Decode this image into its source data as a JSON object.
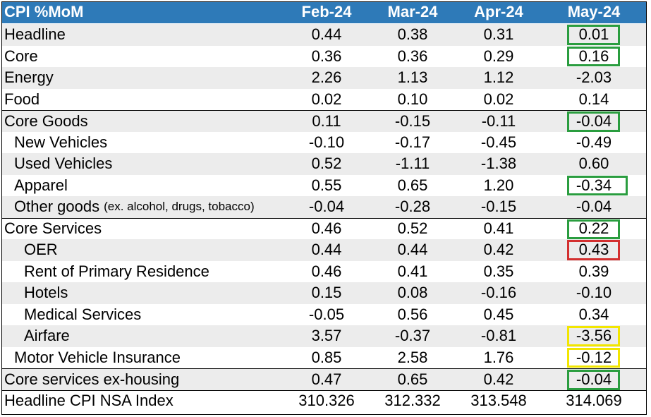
{
  "table": {
    "title": "CPI %MoM",
    "columns": [
      "Feb-24",
      "Mar-24",
      "Apr-24",
      "May-24"
    ],
    "rows": [
      {
        "label": "Headline",
        "note": "",
        "values": [
          "0.44",
          "0.38",
          "0.31",
          "0.01"
        ],
        "highlight": "#2a9d3f"
      },
      {
        "label": "Core",
        "note": "",
        "values": [
          "0.36",
          "0.36",
          "0.29",
          "0.16"
        ],
        "highlight": "#2a9d3f"
      },
      {
        "label": "Energy",
        "note": "",
        "values": [
          "2.26",
          "1.13",
          "1.12",
          "-2.03"
        ],
        "highlight": ""
      },
      {
        "label": "Food",
        "note": "",
        "values": [
          "0.02",
          "0.10",
          "0.02",
          "0.14"
        ],
        "highlight": ""
      },
      {
        "label": "Core Goods",
        "note": "",
        "values": [
          "0.11",
          "-0.15",
          "-0.11",
          "-0.04"
        ],
        "highlight": "#2a9d3f"
      },
      {
        "label": "New Vehicles",
        "note": "",
        "values": [
          "-0.10",
          "-0.17",
          "-0.45",
          "-0.49"
        ],
        "highlight": ""
      },
      {
        "label": "Used Vehicles",
        "note": "",
        "values": [
          "0.52",
          "-1.11",
          "-1.38",
          "0.60"
        ],
        "highlight": ""
      },
      {
        "label": "Apparel",
        "note": "",
        "values": [
          "0.55",
          "0.65",
          "1.20",
          "-0.34"
        ],
        "highlight": "#2a9d3f"
      },
      {
        "label": "Other goods",
        "note": "(ex. alcohol, drugs, tobacco)",
        "values": [
          "-0.04",
          "-0.28",
          "-0.15",
          "-0.04"
        ],
        "highlight": ""
      },
      {
        "label": "Core Services",
        "note": "",
        "values": [
          "0.46",
          "0.52",
          "0.41",
          "0.22"
        ],
        "highlight": "#2a9d3f"
      },
      {
        "label": "OER",
        "note": "",
        "values": [
          "0.44",
          "0.44",
          "0.42",
          "0.43"
        ],
        "highlight": "#d32f2f"
      },
      {
        "label": "Rent of Primary Residence",
        "note": "",
        "values": [
          "0.46",
          "0.41",
          "0.35",
          "0.39"
        ],
        "highlight": ""
      },
      {
        "label": "Hotels",
        "note": "",
        "values": [
          "0.15",
          "0.08",
          "-0.16",
          "-0.10"
        ],
        "highlight": ""
      },
      {
        "label": "Medical Services",
        "note": "",
        "values": [
          "-0.05",
          "0.56",
          "0.45",
          "0.34"
        ],
        "highlight": ""
      },
      {
        "label": "Airfare",
        "note": "",
        "values": [
          "3.57",
          "-0.37",
          "-0.81",
          "-3.56"
        ],
        "highlight": "#f2e600"
      },
      {
        "label": "Motor Vehicle Insurance",
        "note": "",
        "values": [
          "0.85",
          "2.58",
          "1.76",
          "-0.12"
        ],
        "highlight": "#f2e600"
      },
      {
        "label": "Core services ex-housing",
        "note": "",
        "values": [
          "0.47",
          "0.65",
          "0.42",
          "-0.04"
        ],
        "highlight": "#2a9d3f"
      },
      {
        "label": "Headline CPI NSA Index",
        "note": "",
        "values": [
          "310.326",
          "312.332",
          "313.548",
          "314.069"
        ],
        "highlight": ""
      }
    ]
  },
  "colors": {
    "header_bg": "#2e7ab8",
    "shade": "#ececec",
    "green": "#2a9d3f",
    "red": "#d32f2f",
    "yellow": "#f2e600"
  }
}
